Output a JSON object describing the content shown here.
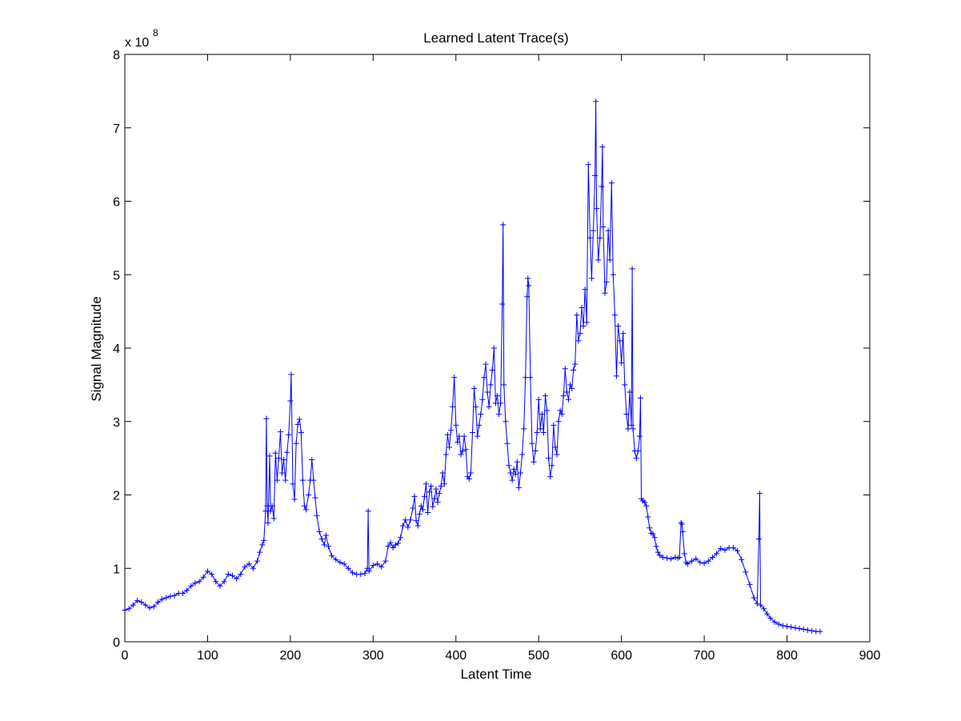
{
  "chart_data": {
    "type": "line",
    "title": "Learned Latent Trace(s)",
    "xlabel": "Latent Time",
    "ylabel": "Signal Magnitude",
    "y_multiplier_base": "x 10",
    "y_multiplier_exponent": "8",
    "xlim": [
      0,
      900
    ],
    "ylim": [
      0,
      8
    ],
    "x_ticks": [
      0,
      100,
      200,
      300,
      400,
      500,
      600,
      700,
      800,
      900
    ],
    "y_ticks": [
      0,
      1,
      2,
      3,
      4,
      5,
      6,
      7,
      8
    ],
    "grid": false,
    "marker": "+",
    "line_color": "#0000ff",
    "series": [
      {
        "points": [
          [
            0,
            0.43
          ],
          [
            5,
            0.45
          ],
          [
            10,
            0.5
          ],
          [
            15,
            0.56
          ],
          [
            20,
            0.54
          ],
          [
            25,
            0.5
          ],
          [
            30,
            0.46
          ],
          [
            35,
            0.48
          ],
          [
            40,
            0.54
          ],
          [
            45,
            0.58
          ],
          [
            50,
            0.6
          ],
          [
            55,
            0.62
          ],
          [
            60,
            0.63
          ],
          [
            65,
            0.66
          ],
          [
            70,
            0.66
          ],
          [
            75,
            0.7
          ],
          [
            80,
            0.76
          ],
          [
            85,
            0.8
          ],
          [
            90,
            0.82
          ],
          [
            95,
            0.88
          ],
          [
            100,
            0.96
          ],
          [
            105,
            0.92
          ],
          [
            110,
            0.82
          ],
          [
            115,
            0.76
          ],
          [
            120,
            0.82
          ],
          [
            125,
            0.92
          ],
          [
            130,
            0.9
          ],
          [
            135,
            0.86
          ],
          [
            140,
            0.92
          ],
          [
            145,
            1.02
          ],
          [
            150,
            1.06
          ],
          [
            155,
            1.0
          ],
          [
            160,
            1.1
          ],
          [
            163,
            1.22
          ],
          [
            166,
            1.32
          ],
          [
            168,
            1.38
          ],
          [
            170,
            1.78
          ],
          [
            171,
            3.04
          ],
          [
            172,
            1.85
          ],
          [
            173,
            1.62
          ],
          [
            175,
            2.53
          ],
          [
            176,
            1.78
          ],
          [
            178,
            1.85
          ],
          [
            180,
            1.68
          ],
          [
            182,
            2.57
          ],
          [
            184,
            2.2
          ],
          [
            186,
            2.5
          ],
          [
            188,
            2.86
          ],
          [
            190,
            2.3
          ],
          [
            192,
            2.48
          ],
          [
            194,
            2.2
          ],
          [
            196,
            2.58
          ],
          [
            198,
            2.82
          ],
          [
            200,
            3.28
          ],
          [
            201,
            3.64
          ],
          [
            203,
            2.15
          ],
          [
            205,
            1.94
          ],
          [
            207,
            2.7
          ],
          [
            209,
            2.96
          ],
          [
            211,
            3.03
          ],
          [
            213,
            2.85
          ],
          [
            215,
            2.2
          ],
          [
            217,
            1.85
          ],
          [
            219,
            1.8
          ],
          [
            222,
            2.0
          ],
          [
            224,
            2.2
          ],
          [
            226,
            2.48
          ],
          [
            228,
            2.2
          ],
          [
            230,
            1.96
          ],
          [
            232,
            1.72
          ],
          [
            235,
            1.5
          ],
          [
            238,
            1.4
          ],
          [
            241,
            1.32
          ],
          [
            243,
            1.45
          ],
          [
            246,
            1.3
          ],
          [
            250,
            1.17
          ],
          [
            255,
            1.12
          ],
          [
            260,
            1.08
          ],
          [
            265,
            1.06
          ],
          [
            270,
            1.0
          ],
          [
            275,
            0.94
          ],
          [
            280,
            0.92
          ],
          [
            285,
            0.92
          ],
          [
            290,
            0.93
          ],
          [
            293,
            1.0
          ],
          [
            294,
            1.78
          ],
          [
            295,
            0.96
          ],
          [
            300,
            1.04
          ],
          [
            305,
            1.06
          ],
          [
            310,
            1.02
          ],
          [
            315,
            1.1
          ],
          [
            318,
            1.3
          ],
          [
            321,
            1.35
          ],
          [
            324,
            1.28
          ],
          [
            327,
            1.32
          ],
          [
            330,
            1.34
          ],
          [
            333,
            1.42
          ],
          [
            336,
            1.58
          ],
          [
            339,
            1.66
          ],
          [
            342,
            1.56
          ],
          [
            345,
            1.66
          ],
          [
            348,
            1.82
          ],
          [
            350,
            1.98
          ],
          [
            352,
            1.65
          ],
          [
            354,
            1.58
          ],
          [
            356,
            1.74
          ],
          [
            358,
            1.85
          ],
          [
            360,
            1.8
          ],
          [
            362,
            1.98
          ],
          [
            364,
            2.15
          ],
          [
            366,
            1.76
          ],
          [
            368,
            2.04
          ],
          [
            370,
            2.12
          ],
          [
            372,
            1.84
          ],
          [
            374,
            1.95
          ],
          [
            376,
            2.08
          ],
          [
            378,
            1.9
          ],
          [
            380,
            2.02
          ],
          [
            382,
            2.12
          ],
          [
            384,
            2.3
          ],
          [
            386,
            2.15
          ],
          [
            388,
            2.55
          ],
          [
            390,
            2.82
          ],
          [
            392,
            2.65
          ],
          [
            394,
            2.88
          ],
          [
            396,
            3.2
          ],
          [
            398,
            3.6
          ],
          [
            400,
            2.95
          ],
          [
            402,
            2.72
          ],
          [
            404,
            2.8
          ],
          [
            406,
            2.55
          ],
          [
            408,
            2.6
          ],
          [
            410,
            2.8
          ],
          [
            412,
            2.62
          ],
          [
            414,
            2.25
          ],
          [
            416,
            2.22
          ],
          [
            418,
            2.3
          ],
          [
            420,
            2.85
          ],
          [
            422,
            3.45
          ],
          [
            424,
            3.2
          ],
          [
            426,
            2.8
          ],
          [
            428,
            2.95
          ],
          [
            430,
            3.1
          ],
          [
            432,
            3.3
          ],
          [
            434,
            3.6
          ],
          [
            436,
            3.78
          ],
          [
            438,
            3.4
          ],
          [
            440,
            3.2
          ],
          [
            442,
            3.5
          ],
          [
            444,
            3.7
          ],
          [
            446,
            4.0
          ],
          [
            448,
            3.25
          ],
          [
            450,
            3.35
          ],
          [
            452,
            3.1
          ],
          [
            454,
            3.25
          ],
          [
            456,
            4.6
          ],
          [
            457,
            5.68
          ],
          [
            458,
            3.5
          ],
          [
            460,
            3.0
          ],
          [
            462,
            2.7
          ],
          [
            464,
            2.4
          ],
          [
            466,
            2.3
          ],
          [
            468,
            2.2
          ],
          [
            470,
            2.35
          ],
          [
            472,
            2.28
          ],
          [
            474,
            2.45
          ],
          [
            476,
            2.1
          ],
          [
            478,
            2.3
          ],
          [
            480,
            2.55
          ],
          [
            482,
            2.9
          ],
          [
            484,
            3.6
          ],
          [
            486,
            4.7
          ],
          [
            487,
            4.95
          ],
          [
            488,
            4.85
          ],
          [
            490,
            3.6
          ],
          [
            492,
            2.7
          ],
          [
            494,
            2.45
          ],
          [
            496,
            2.6
          ],
          [
            498,
            2.85
          ],
          [
            500,
            3.3
          ],
          [
            502,
            2.9
          ],
          [
            504,
            3.1
          ],
          [
            506,
            2.85
          ],
          [
            508,
            3.35
          ],
          [
            510,
            3.15
          ],
          [
            512,
            2.5
          ],
          [
            514,
            2.25
          ],
          [
            516,
            2.4
          ],
          [
            518,
            2.95
          ],
          [
            520,
            2.65
          ],
          [
            522,
            2.55
          ],
          [
            524,
            3.0
          ],
          [
            526,
            3.15
          ],
          [
            528,
            3.1
          ],
          [
            530,
            3.35
          ],
          [
            532,
            3.72
          ],
          [
            534,
            3.4
          ],
          [
            536,
            3.3
          ],
          [
            538,
            3.5
          ],
          [
            540,
            3.45
          ],
          [
            542,
            3.7
          ],
          [
            544,
            3.78
          ],
          [
            546,
            4.45
          ],
          [
            548,
            4.1
          ],
          [
            550,
            4.2
          ],
          [
            552,
            4.55
          ],
          [
            554,
            4.3
          ],
          [
            556,
            4.8
          ],
          [
            558,
            4.35
          ],
          [
            560,
            6.5
          ],
          [
            562,
            5.5
          ],
          [
            564,
            4.95
          ],
          [
            566,
            5.6
          ],
          [
            568,
            6.35
          ],
          [
            569,
            7.36
          ],
          [
            570,
            5.9
          ],
          [
            572,
            5.2
          ],
          [
            574,
            5.5
          ],
          [
            576,
            6.2
          ],
          [
            577,
            6.74
          ],
          [
            578,
            5.65
          ],
          [
            580,
            4.75
          ],
          [
            582,
            4.9
          ],
          [
            584,
            5.6
          ],
          [
            586,
            5.2
          ],
          [
            588,
            6.25
          ],
          [
            590,
            5.0
          ],
          [
            592,
            4.45
          ],
          [
            594,
            3.62
          ],
          [
            596,
            4.3
          ],
          [
            598,
            4.1
          ],
          [
            600,
            3.8
          ],
          [
            602,
            4.2
          ],
          [
            604,
            3.5
          ],
          [
            606,
            3.1
          ],
          [
            608,
            2.9
          ],
          [
            610,
            3.4
          ],
          [
            612,
            2.95
          ],
          [
            613,
            5.08
          ],
          [
            614,
            2.9
          ],
          [
            616,
            2.6
          ],
          [
            618,
            2.5
          ],
          [
            620,
            2.6
          ],
          [
            622,
            2.8
          ],
          [
            623,
            3.32
          ],
          [
            624,
            1.95
          ],
          [
            626,
            1.92
          ],
          [
            628,
            1.9
          ],
          [
            630,
            1.85
          ],
          [
            632,
            1.7
          ],
          [
            634,
            1.55
          ],
          [
            636,
            1.48
          ],
          [
            638,
            1.47
          ],
          [
            640,
            1.42
          ],
          [
            642,
            1.3
          ],
          [
            644,
            1.22
          ],
          [
            646,
            1.18
          ],
          [
            650,
            1.15
          ],
          [
            655,
            1.14
          ],
          [
            660,
            1.13
          ],
          [
            665,
            1.15
          ],
          [
            668,
            1.14
          ],
          [
            670,
            1.15
          ],
          [
            672,
            1.62
          ],
          [
            673,
            1.6
          ],
          [
            674,
            1.5
          ],
          [
            676,
            1.2
          ],
          [
            678,
            1.08
          ],
          [
            680,
            1.06
          ],
          [
            685,
            1.1
          ],
          [
            690,
            1.13
          ],
          [
            695,
            1.08
          ],
          [
            700,
            1.07
          ],
          [
            705,
            1.1
          ],
          [
            710,
            1.15
          ],
          [
            715,
            1.2
          ],
          [
            720,
            1.27
          ],
          [
            725,
            1.25
          ],
          [
            730,
            1.28
          ],
          [
            735,
            1.28
          ],
          [
            740,
            1.24
          ],
          [
            745,
            1.12
          ],
          [
            750,
            0.95
          ],
          [
            755,
            0.78
          ],
          [
            760,
            0.6
          ],
          [
            764,
            0.52
          ],
          [
            766,
            1.4
          ],
          [
            767,
            2.02
          ],
          [
            768,
            0.5
          ],
          [
            772,
            0.45
          ],
          [
            776,
            0.38
          ],
          [
            780,
            0.32
          ],
          [
            785,
            0.27
          ],
          [
            790,
            0.24
          ],
          [
            795,
            0.22
          ],
          [
            800,
            0.21
          ],
          [
            805,
            0.2
          ],
          [
            810,
            0.19
          ],
          [
            815,
            0.18
          ],
          [
            820,
            0.17
          ],
          [
            825,
            0.16
          ],
          [
            830,
            0.15
          ],
          [
            835,
            0.14
          ],
          [
            840,
            0.14
          ]
        ]
      }
    ]
  }
}
